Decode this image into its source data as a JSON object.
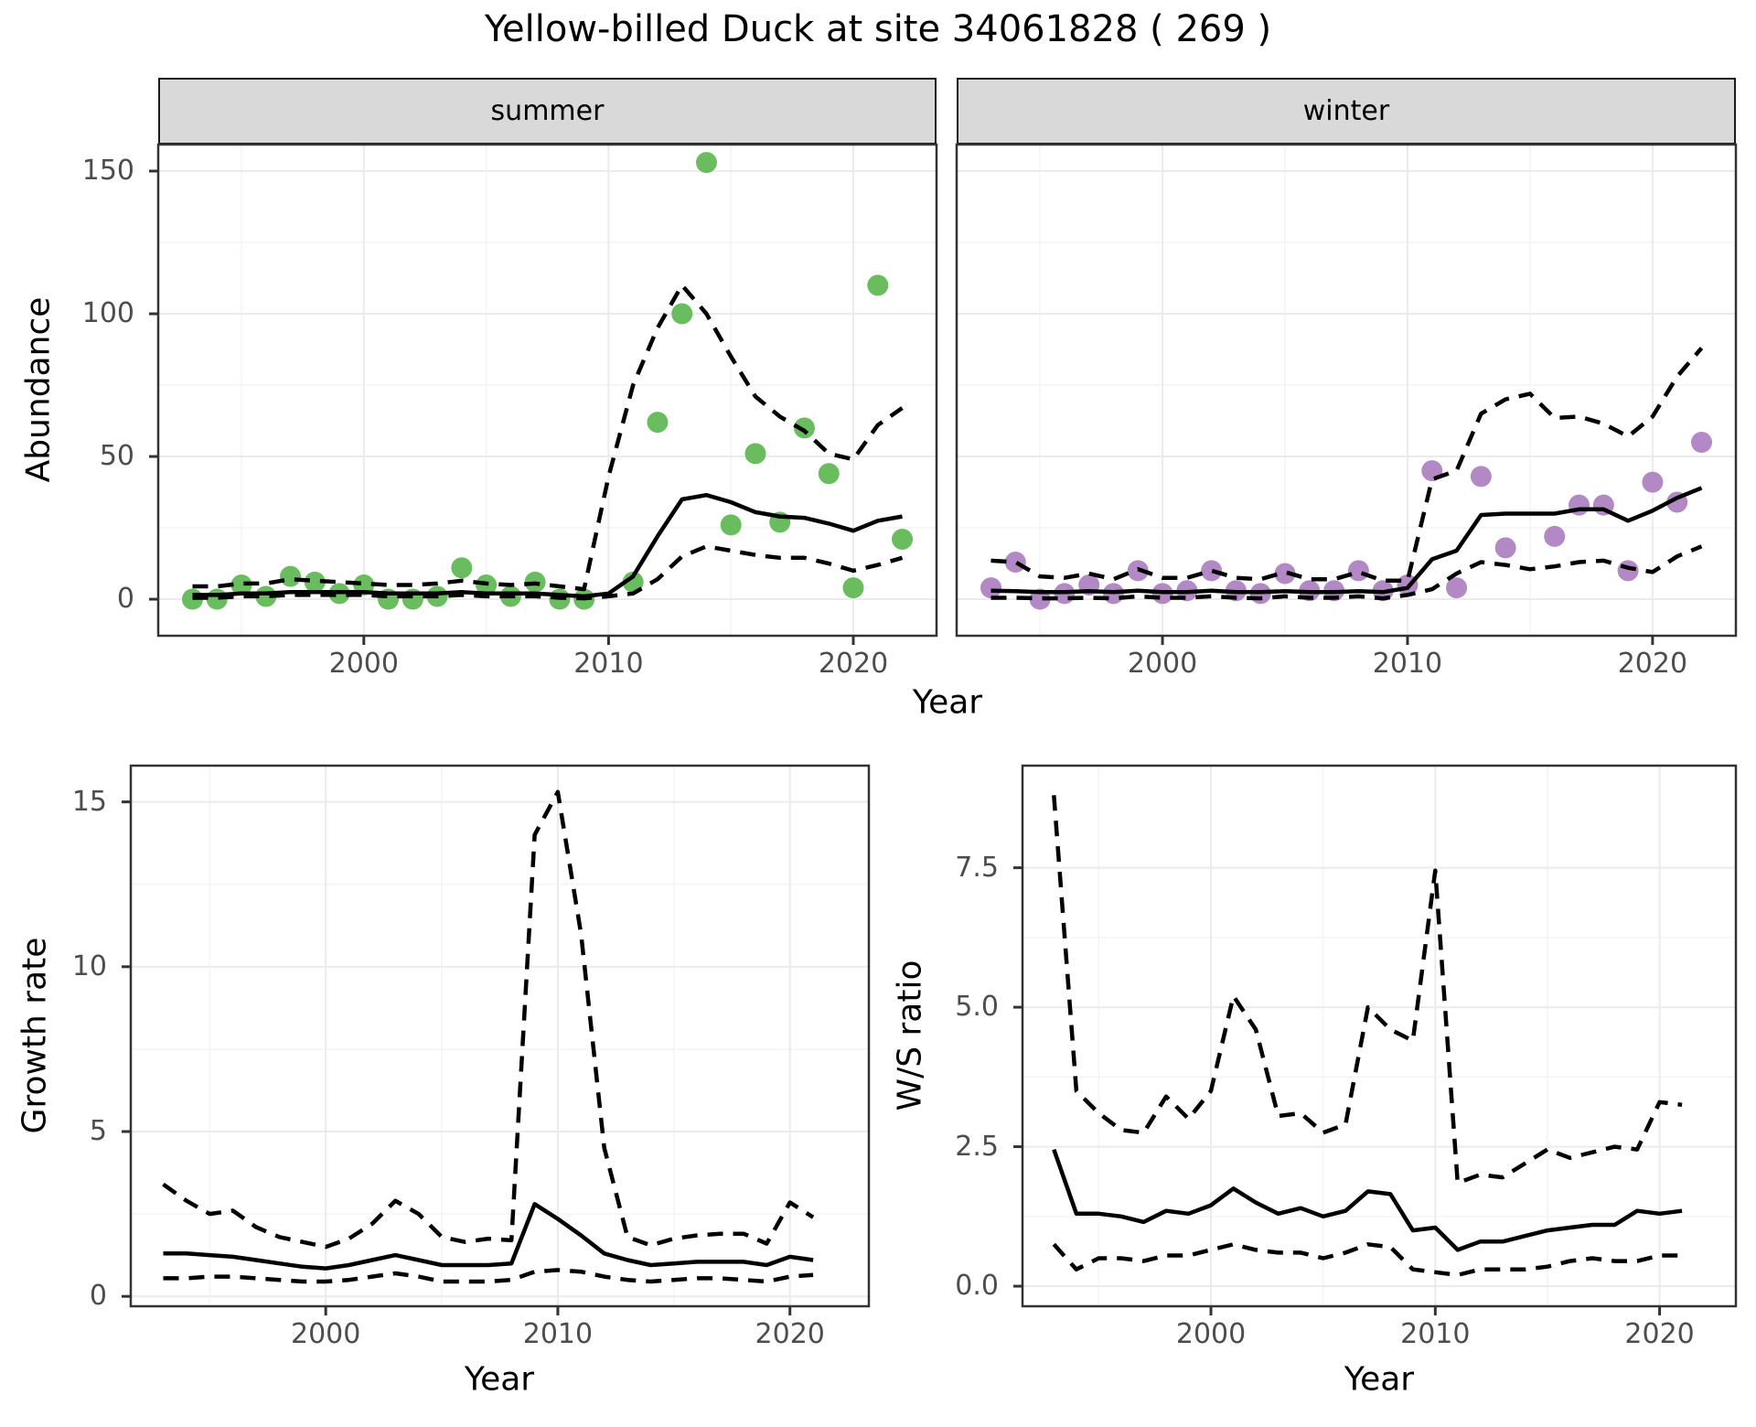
{
  "chart_data": {
    "type": "line",
    "title": "Yellow-billed Duck at site 34061828 ( 269 )",
    "colors": {
      "summer_points": "#6ABD5E",
      "winter_points": "#B289C4",
      "fit_line": "#000000",
      "ci_line": "#000000",
      "strip_bg": "#D9D9D9",
      "grid_major": "#EBEBEB",
      "grid_minor": "#F4F4F4",
      "panel_border": "#333333",
      "tick_text": "#4D4D4D"
    },
    "top": {
      "y_title": "Abundance",
      "x_title": "Year",
      "x_range": [
        1991.6,
        2023.4
      ],
      "y_range": [
        -12.8,
        159.3
      ],
      "x_ticks": [
        2000,
        2010,
        2020
      ],
      "x_tick_labels": [
        "2000",
        "2010",
        "2020"
      ],
      "x_minor": [
        1995,
        2005,
        2015
      ],
      "y_ticks": [
        0,
        50,
        100,
        150
      ],
      "y_tick_labels": [
        "0",
        "50",
        "100",
        "150"
      ],
      "y_minor": [
        25,
        75,
        125
      ],
      "fit_years": [
        1993,
        1994,
        1995,
        1996,
        1997,
        1998,
        1999,
        2000,
        2001,
        2002,
        2003,
        2004,
        2005,
        2006,
        2007,
        2008,
        2009,
        2010,
        2011,
        2012,
        2013,
        2014,
        2015,
        2016,
        2017,
        2018,
        2019,
        2020,
        2021,
        2022
      ],
      "facets": [
        {
          "label": "summer",
          "point_color": "#6ABD5E",
          "points": {
            "years": [
              1993,
              1994,
              1995,
              1996,
              1997,
              1998,
              1999,
              2000,
              2001,
              2002,
              2003,
              2004,
              2005,
              2006,
              2007,
              2008,
              2009,
              2011,
              2012,
              2013,
              2014,
              2015,
              2016,
              2017,
              2018,
              2019,
              2020,
              2021,
              2022
            ],
            "values": [
              0,
              0,
              5,
              1,
              8,
              6,
              2,
              5,
              0,
              0,
              1,
              11,
              5,
              1,
              6,
              0,
              0,
              6,
              62,
              100,
              153,
              26,
              51,
              27,
              60,
              44,
              4,
              110,
              21
            ]
          },
          "mean": [
            1.5,
            1.5,
            2,
            2,
            2.5,
            2.5,
            2.5,
            2.5,
            2,
            2,
            2,
            2.5,
            2,
            2,
            2,
            1.5,
            1,
            2,
            8,
            22,
            35,
            36.5,
            34,
            30.5,
            29,
            28.5,
            26.5,
            24,
            27.5,
            29
          ],
          "upper": [
            4.5,
            4.5,
            5.5,
            5.5,
            7,
            6.5,
            6,
            5.5,
            5,
            5,
            5.5,
            6.5,
            5.5,
            5,
            5.5,
            4.5,
            3.5,
            43,
            75,
            95,
            110,
            100,
            85,
            71,
            64,
            59,
            51,
            49,
            61,
            67
          ],
          "lower": [
            0.5,
            0.5,
            1,
            1,
            1.5,
            1.5,
            1.5,
            1.5,
            1,
            1,
            1,
            1.5,
            1,
            1,
            1,
            0.5,
            0.3,
            1,
            2,
            7,
            15,
            18.5,
            17,
            15.5,
            14.5,
            14.5,
            12.5,
            10,
            12,
            14.5
          ]
        },
        {
          "label": "winter",
          "point_color": "#B289C4",
          "points": {
            "years": [
              1993,
              1994,
              1995,
              1996,
              1997,
              1998,
              1999,
              2000,
              2001,
              2002,
              2003,
              2004,
              2005,
              2006,
              2007,
              2008,
              2009,
              2010,
              2011,
              2012,
              2013,
              2014,
              2016,
              2017,
              2018,
              2019,
              2020,
              2021,
              2022
            ],
            "values": [
              4,
              13,
              0,
              2,
              5,
              2,
              10,
              2,
              3,
              10,
              3,
              2,
              9,
              3,
              3,
              10,
              3,
              5,
              45,
              4,
              43,
              18,
              22,
              33,
              33,
              10,
              41,
              34,
              55
            ]
          },
          "mean": [
            3,
            2.8,
            2.5,
            2.5,
            2.8,
            2.5,
            3,
            2.5,
            2.5,
            3,
            2.5,
            2.5,
            2.8,
            2.5,
            2.5,
            2.8,
            2.5,
            4,
            14,
            17,
            29.5,
            30,
            30,
            30,
            31.5,
            31.5,
            27.5,
            31,
            35.5,
            39
          ],
          "upper": [
            13.5,
            13,
            8,
            7.5,
            9,
            7,
            10.5,
            7.5,
            7.5,
            10,
            7.5,
            7,
            9.5,
            7,
            7,
            9.5,
            6.5,
            6.5,
            42,
            45,
            65,
            70,
            72,
            63.5,
            64,
            61.5,
            57,
            64,
            78,
            88
          ],
          "lower": [
            0.5,
            0.5,
            0.3,
            0.3,
            0.5,
            0.3,
            1,
            0.5,
            0.5,
            1,
            0.5,
            0.3,
            1,
            0.5,
            0.5,
            1,
            0.3,
            1.5,
            3.5,
            9,
            13,
            12,
            10.5,
            11.5,
            13,
            13.5,
            11,
            9.5,
            15,
            18.5
          ]
        }
      ]
    },
    "growth": {
      "y_title": "Growth rate",
      "x_title": "Year",
      "x_range": [
        1991.6,
        2023.4
      ],
      "y_range": [
        -0.3,
        16.1
      ],
      "x_ticks": [
        2000,
        2010,
        2020
      ],
      "x_tick_labels": [
        "2000",
        "2010",
        "2020"
      ],
      "x_minor": [
        1995,
        2005,
        2015
      ],
      "y_ticks": [
        0,
        5,
        10,
        15
      ],
      "y_tick_labels": [
        "0",
        "5",
        "10",
        "15"
      ],
      "y_minor": [
        2.5,
        7.5,
        12.5
      ],
      "years": [
        1993,
        1994,
        1995,
        1996,
        1997,
        1998,
        1999,
        2000,
        2001,
        2002,
        2003,
        2004,
        2005,
        2006,
        2007,
        2008,
        2009,
        2010,
        2011,
        2012,
        2013,
        2014,
        2015,
        2016,
        2017,
        2018,
        2019,
        2020,
        2021
      ],
      "mean": [
        1.3,
        1.3,
        1.25,
        1.2,
        1.1,
        1.0,
        0.9,
        0.85,
        0.95,
        1.1,
        1.25,
        1.1,
        0.95,
        0.95,
        0.95,
        1.0,
        2.8,
        2.35,
        1.85,
        1.3,
        1.1,
        0.95,
        1.0,
        1.05,
        1.05,
        1.05,
        0.95,
        1.2,
        1.1
      ],
      "upper": [
        3.4,
        2.9,
        2.5,
        2.6,
        2.1,
        1.8,
        1.65,
        1.5,
        1.75,
        2.2,
        2.9,
        2.5,
        1.8,
        1.65,
        1.75,
        1.7,
        14,
        15.3,
        11,
        4.5,
        1.8,
        1.55,
        1.75,
        1.85,
        1.9,
        1.9,
        1.6,
        2.85,
        2.4
      ],
      "lower": [
        0.55,
        0.55,
        0.6,
        0.6,
        0.55,
        0.5,
        0.45,
        0.45,
        0.5,
        0.6,
        0.7,
        0.6,
        0.45,
        0.45,
        0.45,
        0.5,
        0.75,
        0.8,
        0.75,
        0.6,
        0.5,
        0.45,
        0.5,
        0.55,
        0.55,
        0.5,
        0.45,
        0.6,
        0.65
      ]
    },
    "ws": {
      "y_title": "W/S ratio",
      "x_title": "Year",
      "x_range": [
        1991.6,
        2023.4
      ],
      "y_range": [
        -0.36,
        9.33
      ],
      "x_ticks": [
        2000,
        2010,
        2020
      ],
      "x_tick_labels": [
        "2000",
        "2010",
        "2020"
      ],
      "x_minor": [
        1995,
        2005,
        2015
      ],
      "y_ticks": [
        0,
        2.5,
        5,
        7.5
      ],
      "y_tick_labels": [
        "0.0",
        "2.5",
        "5.0",
        "7.5"
      ],
      "y_minor": [
        1.25,
        3.75,
        6.25
      ],
      "years": [
        1993,
        1994,
        1995,
        1996,
        1997,
        1998,
        1999,
        2000,
        2001,
        2002,
        2003,
        2004,
        2005,
        2006,
        2007,
        2008,
        2009,
        2010,
        2011,
        2012,
        2013,
        2014,
        2015,
        2016,
        2017,
        2018,
        2019,
        2020,
        2021
      ],
      "mean": [
        2.45,
        1.3,
        1.3,
        1.25,
        1.15,
        1.35,
        1.3,
        1.45,
        1.75,
        1.5,
        1.3,
        1.4,
        1.25,
        1.35,
        1.7,
        1.65,
        1.0,
        1.05,
        0.65,
        0.8,
        0.8,
        0.9,
        1.0,
        1.05,
        1.1,
        1.1,
        1.35,
        1.3,
        1.35
      ],
      "upper": [
        8.8,
        3.5,
        3.1,
        2.8,
        2.75,
        3.4,
        3.0,
        3.5,
        5.2,
        4.6,
        3.05,
        3.1,
        2.75,
        2.9,
        5.0,
        4.6,
        4.4,
        7.45,
        1.85,
        2.0,
        1.95,
        2.2,
        2.45,
        2.3,
        2.4,
        2.5,
        2.45,
        3.3,
        3.25
      ],
      "lower": [
        0.75,
        0.3,
        0.5,
        0.5,
        0.45,
        0.55,
        0.55,
        0.65,
        0.75,
        0.65,
        0.6,
        0.6,
        0.5,
        0.6,
        0.75,
        0.7,
        0.3,
        0.25,
        0.2,
        0.3,
        0.3,
        0.3,
        0.35,
        0.45,
        0.5,
        0.45,
        0.45,
        0.55,
        0.55
      ]
    }
  }
}
